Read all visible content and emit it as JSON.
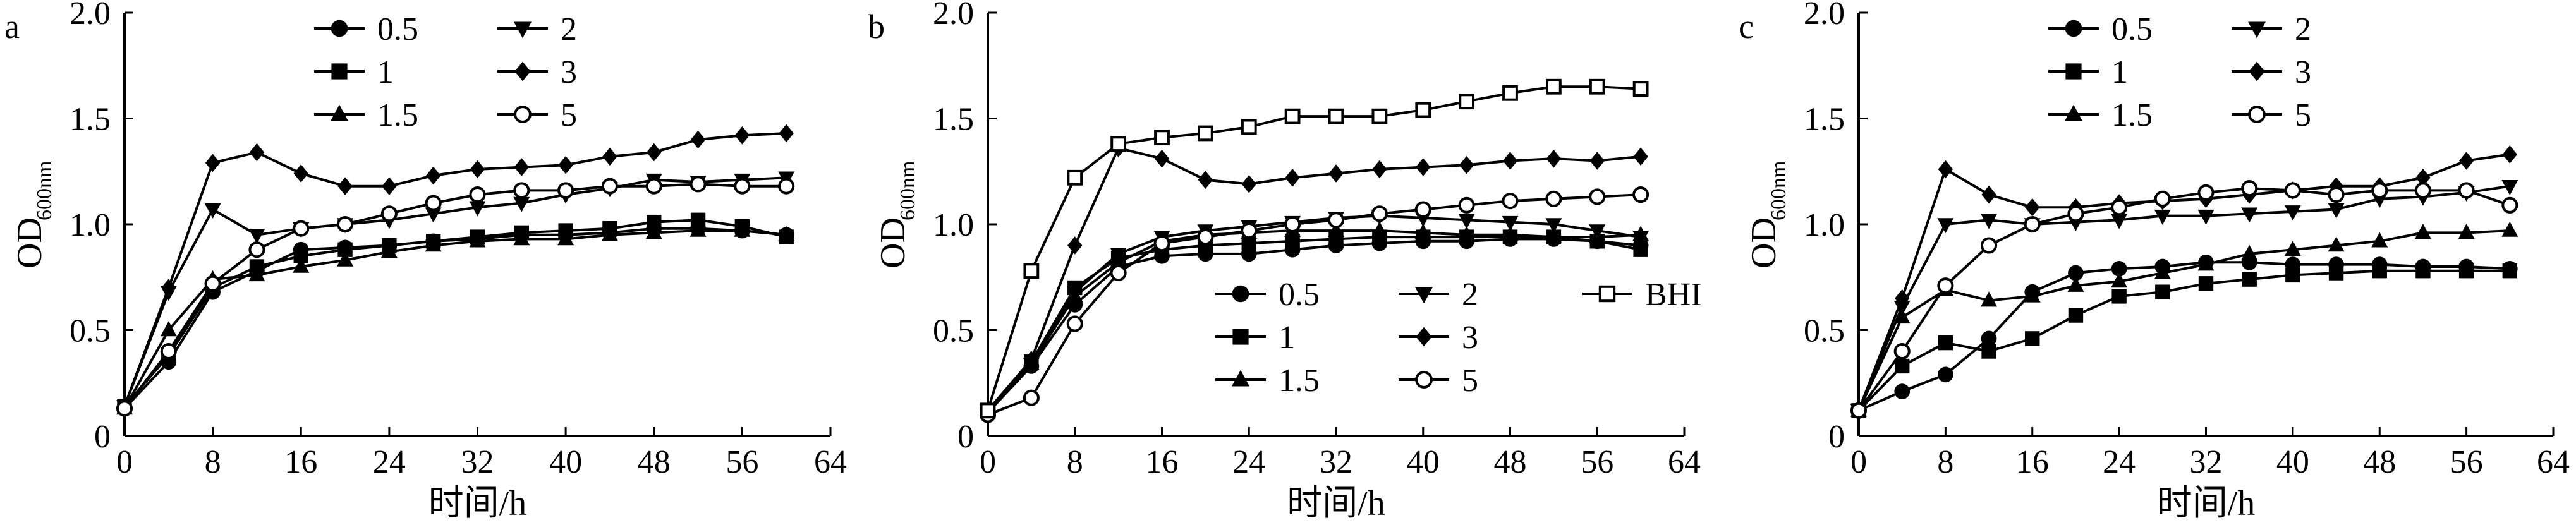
{
  "chart_data": [
    {
      "type": "line",
      "panel_label": "a",
      "xlabel": "时间/h",
      "ylabel_main": "OD",
      "ylabel_sub": "600nm",
      "xlim": [
        0,
        64
      ],
      "ylim": [
        0,
        2.0
      ],
      "x_ticks": [
        "0",
        "8",
        "16",
        "24",
        "32",
        "40",
        "48",
        "56",
        "64"
      ],
      "y_ticks": [
        "0",
        "0.5",
        "1.0",
        "1.5",
        "2.0"
      ],
      "legend_position": "top-center",
      "x": [
        0,
        4,
        8,
        12,
        16,
        20,
        24,
        28,
        32,
        36,
        40,
        44,
        48,
        52,
        56,
        60
      ],
      "series": [
        {
          "name": "0.5",
          "marker": "circle",
          "values": [
            0.13,
            0.35,
            0.68,
            0.78,
            0.88,
            0.89,
            0.9,
            0.92,
            0.93,
            0.95,
            0.95,
            0.96,
            0.98,
            0.98,
            0.97,
            0.95
          ]
        },
        {
          "name": "1",
          "marker": "square",
          "values": [
            0.14,
            0.38,
            0.7,
            0.8,
            0.85,
            0.88,
            0.9,
            0.92,
            0.94,
            0.96,
            0.97,
            0.98,
            1.01,
            1.02,
            0.99,
            0.94
          ]
        },
        {
          "name": "1.5",
          "marker": "triangle-up",
          "values": [
            0.13,
            0.5,
            0.74,
            0.76,
            0.8,
            0.83,
            0.87,
            0.9,
            0.92,
            0.93,
            0.93,
            0.95,
            0.96,
            0.97,
            0.97,
            0.95
          ]
        },
        {
          "name": "2",
          "marker": "triangle-down",
          "values": [
            0.14,
            0.68,
            1.07,
            0.95,
            0.98,
            1.0,
            1.02,
            1.05,
            1.08,
            1.1,
            1.14,
            1.17,
            1.21,
            1.2,
            1.21,
            1.22
          ]
        },
        {
          "name": "3",
          "marker": "diamond",
          "values": [
            0.14,
            0.7,
            1.29,
            1.34,
            1.24,
            1.18,
            1.18,
            1.23,
            1.26,
            1.27,
            1.28,
            1.32,
            1.34,
            1.4,
            1.42,
            1.43
          ]
        },
        {
          "name": "5",
          "marker": "circle-open",
          "values": [
            0.13,
            0.4,
            0.72,
            0.88,
            0.98,
            1.0,
            1.05,
            1.1,
            1.14,
            1.16,
            1.16,
            1.18,
            1.18,
            1.19,
            1.18,
            1.18
          ]
        }
      ]
    },
    {
      "type": "line",
      "panel_label": "b",
      "xlabel": "时间/h",
      "ylabel_main": "OD",
      "ylabel_sub": "600nm",
      "xlim": [
        0,
        64
      ],
      "ylim": [
        0,
        2.0
      ],
      "x_ticks": [
        "0",
        "8",
        "16",
        "24",
        "32",
        "40",
        "48",
        "56",
        "64"
      ],
      "y_ticks": [
        "0",
        "0.5",
        "1.0",
        "1.5",
        "2.0"
      ],
      "legend_position": "bottom-center",
      "x": [
        0,
        4,
        8,
        12,
        16,
        20,
        24,
        28,
        32,
        36,
        40,
        44,
        48,
        52,
        56,
        60
      ],
      "series": [
        {
          "name": "0.5",
          "marker": "circle",
          "values": [
            0.11,
            0.33,
            0.62,
            0.8,
            0.85,
            0.86,
            0.86,
            0.88,
            0.9,
            0.91,
            0.92,
            0.92,
            0.93,
            0.93,
            0.92,
            0.9
          ]
        },
        {
          "name": "1",
          "marker": "square",
          "values": [
            0.12,
            0.35,
            0.7,
            0.84,
            0.88,
            0.9,
            0.91,
            0.92,
            0.93,
            0.94,
            0.94,
            0.94,
            0.94,
            0.94,
            0.92,
            0.88
          ]
        },
        {
          "name": "1.5",
          "marker": "triangle-up",
          "values": [
            0.12,
            0.34,
            0.66,
            0.82,
            0.92,
            0.95,
            0.96,
            0.97,
            0.97,
            0.97,
            0.96,
            0.95,
            0.95,
            0.94,
            0.94,
            0.95
          ]
        },
        {
          "name": "2",
          "marker": "triangle-down",
          "values": [
            0.12,
            0.34,
            0.68,
            0.86,
            0.94,
            0.97,
            0.99,
            1.01,
            1.03,
            1.04,
            1.03,
            1.02,
            1.01,
            1.0,
            0.97,
            0.94
          ]
        },
        {
          "name": "3",
          "marker": "diamond",
          "values": [
            0.12,
            0.36,
            0.9,
            1.36,
            1.31,
            1.21,
            1.19,
            1.22,
            1.24,
            1.26,
            1.27,
            1.28,
            1.3,
            1.31,
            1.3,
            1.32
          ]
        },
        {
          "name": "5",
          "marker": "circle-open",
          "values": [
            0.1,
            0.18,
            0.53,
            0.77,
            0.91,
            0.94,
            0.97,
            1.0,
            1.02,
            1.05,
            1.07,
            1.09,
            1.11,
            1.12,
            1.13,
            1.14
          ]
        },
        {
          "name": "BHI",
          "marker": "square-open",
          "values": [
            0.12,
            0.78,
            1.22,
            1.38,
            1.41,
            1.43,
            1.46,
            1.51,
            1.51,
            1.51,
            1.54,
            1.58,
            1.62,
            1.65,
            1.65,
            1.64
          ]
        }
      ]
    },
    {
      "type": "line",
      "panel_label": "c",
      "xlabel": "时间/h",
      "ylabel_main": "OD",
      "ylabel_sub": "600nm",
      "xlim": [
        0,
        64
      ],
      "ylim": [
        0,
        2.0
      ],
      "x_ticks": [
        "0",
        "8",
        "16",
        "24",
        "32",
        "40",
        "48",
        "56",
        "64"
      ],
      "y_ticks": [
        "0",
        "0.5",
        "1.0",
        "1.5",
        "2.0"
      ],
      "legend_position": "top-center",
      "x": [
        0,
        4,
        8,
        12,
        16,
        20,
        24,
        28,
        32,
        36,
        40,
        44,
        48,
        52,
        56,
        60
      ],
      "series": [
        {
          "name": "0.5",
          "marker": "circle",
          "values": [
            0.12,
            0.21,
            0.29,
            0.46,
            0.68,
            0.77,
            0.79,
            0.8,
            0.82,
            0.82,
            0.81,
            0.81,
            0.81,
            0.8,
            0.8,
            0.79
          ]
        },
        {
          "name": "1",
          "marker": "square",
          "values": [
            0.12,
            0.33,
            0.44,
            0.4,
            0.46,
            0.57,
            0.66,
            0.68,
            0.72,
            0.74,
            0.76,
            0.77,
            0.78,
            0.78,
            0.78,
            0.78
          ]
        },
        {
          "name": "1.5",
          "marker": "triangle-up",
          "values": [
            0.12,
            0.56,
            0.69,
            0.64,
            0.66,
            0.71,
            0.73,
            0.77,
            0.81,
            0.86,
            0.88,
            0.9,
            0.92,
            0.96,
            0.96,
            0.97
          ]
        },
        {
          "name": "2",
          "marker": "triangle-down",
          "values": [
            0.12,
            0.61,
            1.0,
            1.02,
            1.0,
            1.01,
            1.02,
            1.04,
            1.04,
            1.05,
            1.06,
            1.07,
            1.12,
            1.13,
            1.15,
            1.18
          ]
        },
        {
          "name": "3",
          "marker": "diamond",
          "values": [
            0.12,
            0.65,
            1.26,
            1.14,
            1.08,
            1.08,
            1.1,
            1.11,
            1.12,
            1.14,
            1.16,
            1.18,
            1.18,
            1.22,
            1.3,
            1.33
          ]
        },
        {
          "name": "5",
          "marker": "circle-open",
          "values": [
            0.12,
            0.4,
            0.71,
            0.9,
            1.0,
            1.05,
            1.08,
            1.12,
            1.15,
            1.17,
            1.16,
            1.14,
            1.16,
            1.16,
            1.16,
            1.09
          ]
        }
      ]
    }
  ]
}
